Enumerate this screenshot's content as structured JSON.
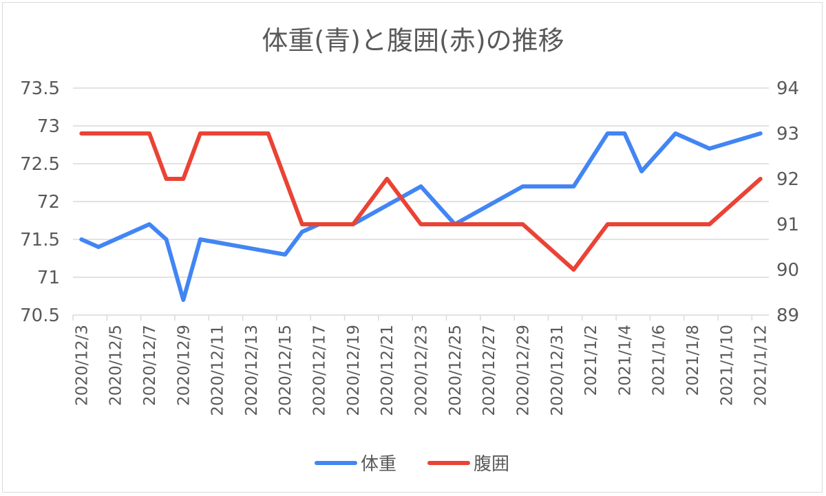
{
  "chart_data": {
    "type": "line",
    "title": "体重(青)と腹囲(赤)の推移",
    "x": [
      "2020/12/3",
      "2020/12/4",
      "2020/12/5",
      "2020/12/6",
      "2020/12/7",
      "2020/12/8",
      "2020/12/9",
      "2020/12/10",
      "2020/12/11",
      "2020/12/12",
      "2020/12/13",
      "2020/12/14",
      "2020/12/15",
      "2020/12/16",
      "2020/12/17",
      "2020/12/18",
      "2020/12/19",
      "2020/12/20",
      "2020/12/21",
      "2020/12/22",
      "2020/12/23",
      "2020/12/24",
      "2020/12/25",
      "2020/12/26",
      "2020/12/27",
      "2020/12/28",
      "2020/12/29",
      "2020/12/30",
      "2020/12/31",
      "2021/1/1",
      "2021/1/2",
      "2021/1/3",
      "2021/1/4",
      "2021/1/5",
      "2021/1/6",
      "2021/1/7",
      "2021/1/8",
      "2021/1/9",
      "2021/1/10",
      "2021/1/11",
      "2021/1/12"
    ],
    "x_tick_labels": [
      "2020/12/3",
      "2020/12/5",
      "2020/12/7",
      "2020/12/9",
      "2020/12/11",
      "2020/12/13",
      "2020/12/15",
      "2020/12/17",
      "2020/12/19",
      "2020/12/21",
      "2020/12/23",
      "2020/12/25",
      "2020/12/27",
      "2020/12/29",
      "2020/12/31",
      "2021/1/2",
      "2021/1/4",
      "2021/1/6",
      "2021/1/8",
      "2021/1/10",
      "2021/1/12"
    ],
    "y_left": {
      "ylim": [
        70.5,
        73.5
      ],
      "ticks": [
        "70.5",
        "71",
        "71.5",
        "72",
        "72.5",
        "73",
        "73.5"
      ]
    },
    "y_right": {
      "ylim": [
        89,
        94
      ],
      "ticks": [
        "89",
        "90",
        "91",
        "92",
        "93",
        "94"
      ]
    },
    "grid": true,
    "legend_position": "bottom",
    "series": [
      {
        "name": "体重",
        "axis": "left",
        "color": "#4285f4",
        "values": [
          71.5,
          71.4,
          null,
          null,
          71.7,
          71.5,
          70.7,
          71.5,
          null,
          null,
          null,
          null,
          71.3,
          71.6,
          71.7,
          null,
          71.7,
          null,
          null,
          null,
          72.2,
          null,
          71.7,
          null,
          null,
          null,
          72.2,
          null,
          null,
          72.2,
          null,
          72.9,
          72.9,
          72.4,
          null,
          72.9,
          null,
          72.7,
          null,
          null,
          72.9
        ]
      },
      {
        "name": "腹囲",
        "axis": "right",
        "color": "#ea4335",
        "values": [
          93,
          null,
          null,
          null,
          93,
          92,
          92,
          93,
          null,
          null,
          null,
          93,
          null,
          91,
          null,
          null,
          91,
          null,
          92,
          null,
          91,
          null,
          91,
          null,
          null,
          null,
          91,
          null,
          null,
          90,
          null,
          91,
          null,
          91,
          null,
          null,
          null,
          91,
          null,
          null,
          92
        ]
      }
    ]
  }
}
